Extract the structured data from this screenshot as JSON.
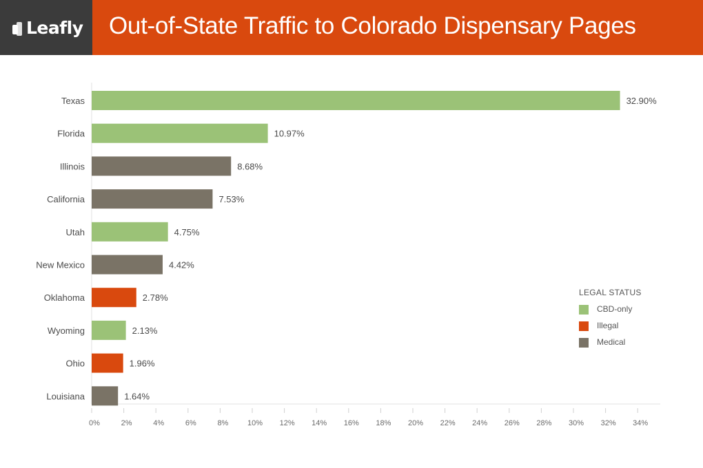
{
  "header": {
    "logo": "Leafly",
    "title": "Out-of-State Traffic to Colorado Dispensary Pages"
  },
  "colors": {
    "CBD-only": "#9bc277",
    "Illegal": "#d9490e",
    "Medical": "#7a7366",
    "header_bg": "#d9490e",
    "logo_bg": "#3b3b3b"
  },
  "chart_data": {
    "type": "bar",
    "orientation": "horizontal",
    "title": "Out-of-State Traffic to Colorado Dispensary Pages",
    "xlabel": "",
    "ylabel": "",
    "xlim": [
      0,
      34
    ],
    "x_ticks": [
      "0%",
      "2%",
      "4%",
      "6%",
      "8%",
      "10%",
      "12%",
      "14%",
      "16%",
      "18%",
      "20%",
      "22%",
      "24%",
      "26%",
      "28%",
      "30%",
      "32%",
      "34%"
    ],
    "categories": [
      "Texas",
      "Florida",
      "Illinois",
      "California",
      "Utah",
      "New Mexico",
      "Oklahoma",
      "Wyoming",
      "Ohio",
      "Louisiana"
    ],
    "values": [
      32.9,
      10.97,
      8.68,
      7.53,
      4.75,
      4.42,
      2.78,
      2.13,
      1.96,
      1.64
    ],
    "value_labels": [
      "32.90%",
      "10.97%",
      "8.68%",
      "7.53%",
      "4.75%",
      "4.42%",
      "2.78%",
      "2.13%",
      "1.96%",
      "1.64%"
    ],
    "status": [
      "CBD-only",
      "CBD-only",
      "Medical",
      "Medical",
      "CBD-only",
      "Medical",
      "Illegal",
      "CBD-only",
      "Illegal",
      "Medical"
    ],
    "legend": {
      "title": "LEGAL STATUS",
      "entries": [
        "CBD-only",
        "Illegal",
        "Medical"
      ],
      "placement": "right"
    },
    "grid": false
  }
}
